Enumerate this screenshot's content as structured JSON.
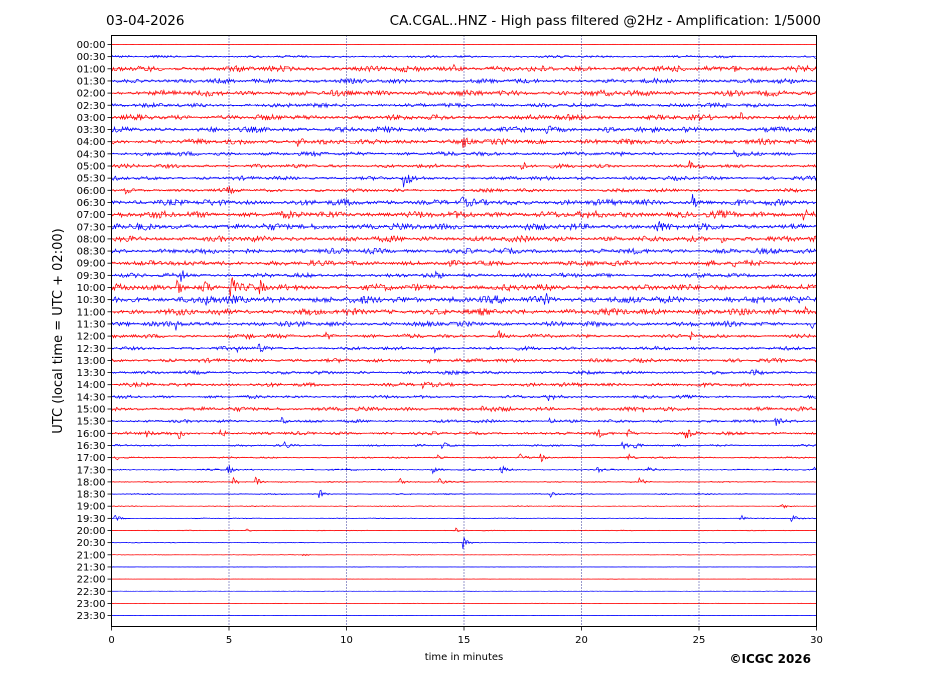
{
  "header": {
    "date": "03-04-2026",
    "title": "CA.CGAL..HNZ - High pass filtered @2Hz - Amplification: 1/5000"
  },
  "footer": {
    "copyright": "©ICGC 2026"
  },
  "colors": {
    "even_trace": "#ff0000",
    "odd_trace": "#0000ff",
    "axis": "#000000",
    "grid": "#000080"
  },
  "chart_data": {
    "type": "line",
    "subtype": "helicorder",
    "title": "CA.CGAL..HNZ - High pass filtered @2Hz - Amplification: 1/5000",
    "xlabel": "time in minutes",
    "ylabel": "UTC (local time = UTC + 02:00)",
    "xlim": [
      0,
      30
    ],
    "xticks": [
      0,
      5,
      10,
      15,
      20,
      25,
      30
    ],
    "vertical_grid_at": [
      5,
      10,
      15,
      20,
      25
    ],
    "rows": [
      "00:00",
      "00:30",
      "01:00",
      "01:30",
      "02:00",
      "02:30",
      "03:00",
      "03:30",
      "04:00",
      "04:30",
      "05:00",
      "05:30",
      "06:00",
      "06:30",
      "07:00",
      "07:30",
      "08:00",
      "08:30",
      "09:00",
      "09:30",
      "10:00",
      "10:30",
      "11:00",
      "11:30",
      "12:00",
      "12:30",
      "13:00",
      "13:30",
      "14:00",
      "14:30",
      "15:00",
      "15:30",
      "16:00",
      "16:30",
      "17:00",
      "17:30",
      "18:00",
      "18:30",
      "19:00",
      "19:30",
      "20:00",
      "20:30",
      "21:00",
      "21:30",
      "22:00",
      "22:30",
      "23:00",
      "23:30"
    ],
    "noise_level": [
      0.05,
      0.3,
      0.75,
      0.6,
      0.75,
      0.55,
      0.7,
      0.7,
      0.7,
      0.55,
      0.5,
      0.5,
      0.45,
      0.8,
      0.9,
      0.85,
      0.75,
      0.7,
      0.7,
      0.55,
      0.85,
      0.95,
      0.85,
      0.65,
      0.5,
      0.45,
      0.5,
      0.45,
      0.5,
      0.4,
      0.55,
      0.4,
      0.4,
      0.25,
      0.2,
      0.2,
      0.15,
      0.15,
      0.1,
      0.1,
      0.1,
      0.08,
      0.06,
      0.05,
      0.04,
      0.04,
      0.04,
      0.04
    ],
    "events": [
      {
        "row": "00:30",
        "t": 30.0,
        "amp": 0.5
      },
      {
        "row": "01:00",
        "t": 14.6,
        "amp": 0.8
      },
      {
        "row": "01:00",
        "t": 26.5,
        "amp": 0.8
      },
      {
        "row": "02:00",
        "t": 21.8,
        "amp": 0.6
      },
      {
        "row": "03:00",
        "t": 26.8,
        "amp": 0.7
      },
      {
        "row": "03:30",
        "t": 18.5,
        "amp": 0.7
      },
      {
        "row": "03:30",
        "t": 21.0,
        "amp": 0.7
      },
      {
        "row": "04:00",
        "t": 8.0,
        "amp": 1.0
      },
      {
        "row": "04:00",
        "t": 15.0,
        "amp": 1.0
      },
      {
        "row": "04:30",
        "t": 26.5,
        "amp": 0.6
      },
      {
        "row": "05:00",
        "t": 17.5,
        "amp": 0.8
      },
      {
        "row": "05:00",
        "t": 24.6,
        "amp": 0.8
      },
      {
        "row": "05:30",
        "t": 12.5,
        "amp": 2.2
      },
      {
        "row": "06:00",
        "t": 0.6,
        "amp": 0.8
      },
      {
        "row": "06:00",
        "t": 5.0,
        "amp": 0.5
      },
      {
        "row": "06:30",
        "t": 14.9,
        "amp": 1.0
      },
      {
        "row": "06:30",
        "t": 24.8,
        "amp": 1.5
      },
      {
        "row": "07:00",
        "t": 29.5,
        "amp": 1.3
      },
      {
        "row": "07:30",
        "t": 0.2,
        "amp": 1.0
      },
      {
        "row": "07:30",
        "t": 23.3,
        "amp": 0.8
      },
      {
        "row": "08:00",
        "t": 26.0,
        "amp": 0.6
      },
      {
        "row": "09:00",
        "t": 26.5,
        "amp": 0.6
      },
      {
        "row": "09:30",
        "t": 3.0,
        "amp": 1.2
      },
      {
        "row": "09:30",
        "t": 13.8,
        "amp": 0.7
      },
      {
        "row": "10:00",
        "t": 2.8,
        "amp": 2.0
      },
      {
        "row": "10:00",
        "t": 3.9,
        "amp": 2.5
      },
      {
        "row": "10:00",
        "t": 5.1,
        "amp": 2.5
      },
      {
        "row": "10:00",
        "t": 6.3,
        "amp": 1.5
      },
      {
        "row": "10:30",
        "t": 4.1,
        "amp": 2.0
      },
      {
        "row": "10:30",
        "t": 18.5,
        "amp": 0.9
      },
      {
        "row": "10:30",
        "t": 26.2,
        "amp": 0.8
      },
      {
        "row": "11:00",
        "t": 29.5,
        "amp": 1.0
      },
      {
        "row": "11:30",
        "t": 2.8,
        "amp": 1.0
      },
      {
        "row": "11:30",
        "t": 29.8,
        "amp": 0.7
      },
      {
        "row": "12:00",
        "t": 5.8,
        "amp": 0.9
      },
      {
        "row": "12:00",
        "t": 9.2,
        "amp": 0.8
      },
      {
        "row": "12:00",
        "t": 16.5,
        "amp": 1.0
      },
      {
        "row": "12:00",
        "t": 24.7,
        "amp": 0.9
      },
      {
        "row": "12:30",
        "t": 5.4,
        "amp": 0.6
      },
      {
        "row": "12:30",
        "t": 6.3,
        "amp": 0.9
      },
      {
        "row": "12:30",
        "t": 13.8,
        "amp": 0.8
      },
      {
        "row": "13:00",
        "t": 13.5,
        "amp": 0.6
      },
      {
        "row": "13:30",
        "t": 27.3,
        "amp": 0.7
      },
      {
        "row": "14:00",
        "t": 13.3,
        "amp": 0.8
      },
      {
        "row": "14:30",
        "t": 18.6,
        "amp": 0.9
      },
      {
        "row": "15:00",
        "t": 15.8,
        "amp": 0.9
      },
      {
        "row": "15:00",
        "t": 22.5,
        "amp": 0.8
      },
      {
        "row": "15:30",
        "t": 7.3,
        "amp": 0.8
      },
      {
        "row": "15:30",
        "t": 18.7,
        "amp": 0.8
      },
      {
        "row": "15:30",
        "t": 28.3,
        "amp": 0.8
      },
      {
        "row": "16:00",
        "t": 1.5,
        "amp": 0.8
      },
      {
        "row": "16:00",
        "t": 2.9,
        "amp": 1.0
      },
      {
        "row": "16:00",
        "t": 4.7,
        "amp": 0.8
      },
      {
        "row": "16:00",
        "t": 20.7,
        "amp": 0.9
      },
      {
        "row": "16:00",
        "t": 22.0,
        "amp": 0.9
      },
      {
        "row": "16:00",
        "t": 24.5,
        "amp": 0.9
      },
      {
        "row": "16:30",
        "t": 7.4,
        "amp": 0.7
      },
      {
        "row": "16:30",
        "t": 14.1,
        "amp": 0.9
      },
      {
        "row": "16:30",
        "t": 21.8,
        "amp": 1.0
      },
      {
        "row": "16:30",
        "t": 22.3,
        "amp": 0.8
      },
      {
        "row": "17:00",
        "t": 0.2,
        "amp": 0.6
      },
      {
        "row": "17:00",
        "t": 13.9,
        "amp": 0.9
      },
      {
        "row": "17:00",
        "t": 17.4,
        "amp": 0.8
      },
      {
        "row": "17:00",
        "t": 18.3,
        "amp": 0.8
      },
      {
        "row": "17:00",
        "t": 22.0,
        "amp": 0.8
      },
      {
        "row": "17:30",
        "t": 5.0,
        "amp": 1.0
      },
      {
        "row": "17:30",
        "t": 13.7,
        "amp": 0.8
      },
      {
        "row": "17:30",
        "t": 16.6,
        "amp": 1.0
      },
      {
        "row": "17:30",
        "t": 20.7,
        "amp": 0.8
      },
      {
        "row": "17:30",
        "t": 22.9,
        "amp": 0.6
      },
      {
        "row": "17:30",
        "t": 29.9,
        "amp": 0.8
      },
      {
        "row": "18:00",
        "t": 5.2,
        "amp": 0.9
      },
      {
        "row": "18:00",
        "t": 6.2,
        "amp": 1.0
      },
      {
        "row": "18:00",
        "t": 12.3,
        "amp": 0.8
      },
      {
        "row": "18:00",
        "t": 14.0,
        "amp": 0.8
      },
      {
        "row": "18:00",
        "t": 22.5,
        "amp": 1.0
      },
      {
        "row": "18:30",
        "t": 8.9,
        "amp": 0.8
      },
      {
        "row": "18:30",
        "t": 18.7,
        "amp": 0.8
      },
      {
        "row": "19:00",
        "t": 28.5,
        "amp": 0.8
      },
      {
        "row": "19:30",
        "t": 0.2,
        "amp": 0.8
      },
      {
        "row": "19:30",
        "t": 26.8,
        "amp": 0.8
      },
      {
        "row": "19:30",
        "t": 29.0,
        "amp": 0.8
      },
      {
        "row": "20:00",
        "t": 5.8,
        "amp": 0.3
      },
      {
        "row": "20:00",
        "t": 14.7,
        "amp": 0.5
      },
      {
        "row": "20:30",
        "t": 15.0,
        "amp": 1.4
      },
      {
        "row": "21:00",
        "t": 8.2,
        "amp": 0.3
      }
    ]
  }
}
